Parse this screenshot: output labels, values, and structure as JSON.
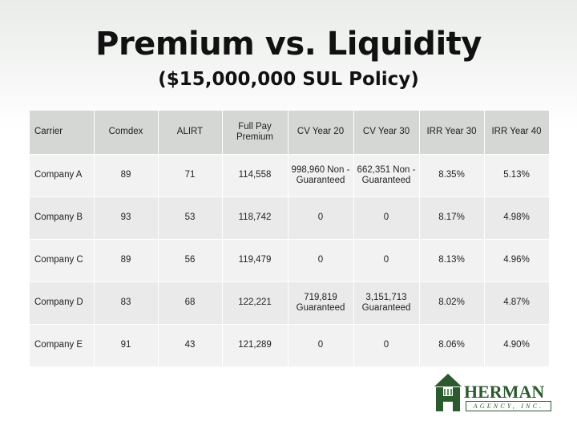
{
  "title": "Premium vs. Liquidity",
  "subtitle": "($15,000,000 SUL Policy)",
  "table": {
    "headers": [
      "Carrier",
      "Comdex",
      "ALIRT",
      "Full Pay Premium",
      "CV Year 20",
      "CV Year 30",
      "IRR Year 30",
      "IRR Year 40"
    ],
    "rows": [
      [
        "Company A",
        "89",
        "71",
        "114,558",
        "998,960 Non -Guaranteed",
        "662,351 Non -Guaranteed",
        "8.35%",
        "5.13%"
      ],
      [
        "Company B",
        "93",
        "53",
        "118,742",
        "0",
        "0",
        "8.17%",
        "4.98%"
      ],
      [
        "Company C",
        "89",
        "56",
        "119,479",
        "0",
        "0",
        "8.13%",
        "4.96%"
      ],
      [
        "Company D",
        "83",
        "68",
        "122,221",
        "719,819 Guaranteed",
        "3,151,713 Guaranteed",
        "8.02%",
        "4.87%"
      ],
      [
        "Company E",
        "91",
        "43",
        "121,289",
        "0",
        "0",
        "8.06%",
        "4.90%"
      ]
    ]
  },
  "logo": {
    "name": "HERMAN",
    "sub": "AGENCY, INC.",
    "color": "#2a5a2e"
  }
}
